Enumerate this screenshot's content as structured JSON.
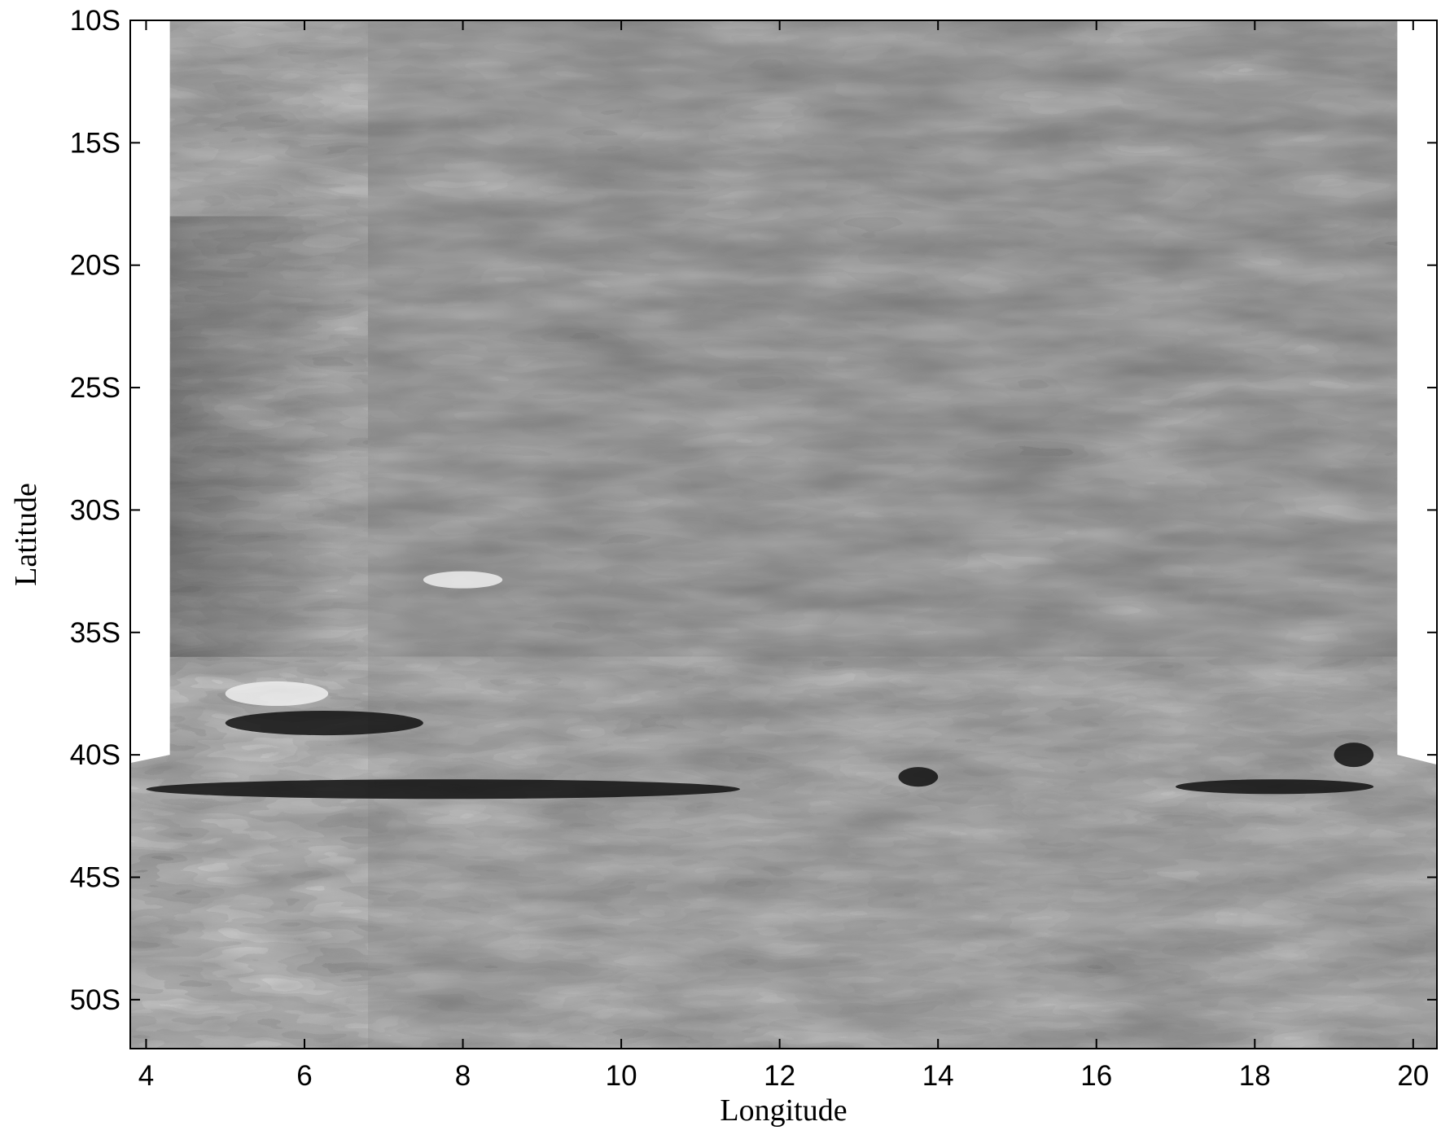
{
  "chart_data": {
    "type": "heatmap",
    "title": "",
    "xlabel": "Longitude",
    "ylabel": "Latitude",
    "xlim": [
      3.8,
      20.3
    ],
    "ylim_south_degrees": [
      10,
      52
    ],
    "x_ticks": [
      4,
      6,
      8,
      10,
      12,
      14,
      16,
      18,
      20
    ],
    "y_ticks": [
      {
        "value": 10,
        "label": "10S"
      },
      {
        "value": 15,
        "label": "15S"
      },
      {
        "value": 20,
        "label": "20S"
      },
      {
        "value": 25,
        "label": "25S"
      },
      {
        "value": 30,
        "label": "30S"
      },
      {
        "value": 35,
        "label": "35S"
      },
      {
        "value": 40,
        "label": "40S"
      },
      {
        "value": 45,
        "label": "45S"
      },
      {
        "value": 50,
        "label": "50S"
      }
    ],
    "colormap": "grayscale",
    "grid": false,
    "colors": {
      "background_field": "#787878",
      "blank_region": "#ffffff"
    },
    "no_data_region": {
      "lat_south_upper": 10,
      "lat_south_lower": 40,
      "lon_left_edge": 4.3,
      "lon_right_edge": 19.8
    },
    "features": [
      {
        "description": "high-variance band near western edge",
        "lon": [
          4.3,
          6.5
        ],
        "lat_south": [
          18,
          36
        ],
        "tone": "light/dark streaks"
      },
      {
        "description": "bright patch",
        "lon": [
          5.0,
          6.3
        ],
        "lat_south": [
          37,
          38
        ],
        "tone": "light"
      },
      {
        "description": "dark diagonal streak",
        "lon": [
          5.0,
          7.5
        ],
        "lat_south": [
          38.2,
          39.2
        ],
        "tone": "dark"
      },
      {
        "description": "dark zonal streak",
        "lon": [
          4.0,
          11.5
        ],
        "lat_south": [
          41.0,
          41.8
        ],
        "tone": "dark"
      },
      {
        "description": "dark blob",
        "lon": [
          13.5,
          14.0
        ],
        "lat_south": [
          40.5,
          41.3
        ],
        "tone": "dark"
      },
      {
        "description": "dark blob",
        "lon": [
          19.0,
          19.5
        ],
        "lat_south": [
          39.5,
          40.5
        ],
        "tone": "dark"
      },
      {
        "description": "dark streak",
        "lon": [
          17.0,
          19.5
        ],
        "lat_south": [
          41.0,
          41.6
        ],
        "tone": "dark"
      },
      {
        "description": "bright streak",
        "lon": [
          7.5,
          8.5
        ],
        "lat_south": [
          32.5,
          33.2
        ],
        "tone": "light"
      }
    ]
  }
}
